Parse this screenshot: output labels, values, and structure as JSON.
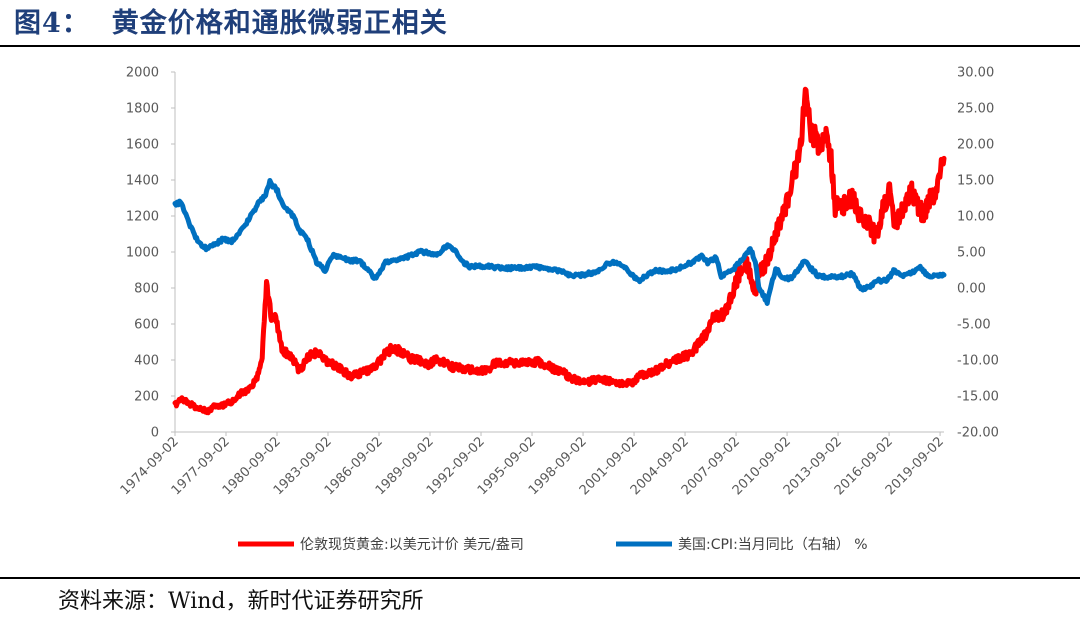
{
  "figure": {
    "label": "图4：",
    "title": "黄金价格和通胀微弱正相关",
    "source": "资料来源：Wind，新时代证券研究所"
  },
  "chart_data": {
    "type": "line",
    "title": "黄金价格和通胀微弱正相关",
    "xlabel": "",
    "ylabel": "",
    "y_left_lim": [
      0,
      2000
    ],
    "y_right_lim": [
      -20,
      30
    ],
    "y_left_ticks": [
      "0",
      "200",
      "400",
      "600",
      "800",
      "1000",
      "1200",
      "1400",
      "1600",
      "1800",
      "2000"
    ],
    "y_right_ticks": [
      "-20.00",
      "-15.00",
      "-10.00",
      "-5.00",
      "0.00",
      "5.00",
      "10.00",
      "15.00",
      "20.00",
      "25.00",
      "30.00"
    ],
    "x_ticks": [
      "1974-09-02",
      "1977-09-02",
      "1980-09-02",
      "1983-09-02",
      "1986-09-02",
      "1989-09-02",
      "1992-09-02",
      "1995-09-02",
      "1998-09-02",
      "2001-09-02",
      "2004-09-02",
      "2007-09-02",
      "2010-09-02",
      "2013-09-02",
      "2016-09-02",
      "2019-09-02"
    ],
    "x_lim": [
      1974.67,
      2019.9
    ],
    "grid": false,
    "legend_position": "bottom",
    "series": [
      {
        "name": "伦敦现货黄金:以美元计价 美元/盎司",
        "axis": "left",
        "color": "#ff0000",
        "x": [
          1974.67,
          1975.0,
          1975.5,
          1976.0,
          1976.7,
          1977.0,
          1977.5,
          1978.0,
          1978.5,
          1979.0,
          1979.5,
          1979.8,
          1980.05,
          1980.3,
          1980.6,
          1981.0,
          1981.5,
          1982.0,
          1982.5,
          1983.0,
          1983.5,
          1984.0,
          1984.5,
          1985.0,
          1985.5,
          1986.0,
          1986.5,
          1987.0,
          1987.5,
          1988.0,
          1988.5,
          1989.0,
          1989.5,
          1990.0,
          1990.5,
          1991.0,
          1992.0,
          1993.0,
          1993.5,
          1994.0,
          1995.0,
          1996.0,
          1997.0,
          1997.5,
          1998.0,
          1999.0,
          1999.7,
          2000.0,
          2001.0,
          2001.5,
          2002.0,
          2003.0,
          2004.0,
          2005.0,
          2006.0,
          2006.4,
          2007.0,
          2008.0,
          2008.3,
          2008.8,
          2009.0,
          2009.5,
          2010.0,
          2010.5,
          2011.0,
          2011.5,
          2011.7,
          2012.0,
          2012.5,
          2013.0,
          2013.3,
          2013.5,
          2014.0,
          2014.5,
          2015.0,
          2015.5,
          2015.9,
          2016.3,
          2016.7,
          2017.0,
          2017.5,
          2018.0,
          2018.7,
          2019.0,
          2019.4,
          2019.7,
          2019.9
        ],
        "values": [
          150,
          180,
          160,
          130,
          115,
          145,
          150,
          170,
          210,
          240,
          300,
          420,
          840,
          650,
          620,
          450,
          420,
          340,
          420,
          440,
          400,
          370,
          345,
          310,
          325,
          340,
          370,
          430,
          470,
          440,
          410,
          400,
          370,
          400,
          390,
          360,
          345,
          340,
          380,
          385,
          385,
          390,
          350,
          330,
          295,
          280,
          300,
          285,
          270,
          270,
          310,
          345,
          400,
          430,
          560,
          650,
          650,
          920,
          940,
          760,
          870,
          950,
          1100,
          1230,
          1400,
          1600,
          1880,
          1700,
          1600,
          1650,
          1480,
          1250,
          1260,
          1300,
          1200,
          1150,
          1080,
          1250,
          1330,
          1150,
          1250,
          1330,
          1200,
          1290,
          1300,
          1500,
          1520
        ]
      },
      {
        "name": "美国:CPI:当月同比（右轴） %",
        "axis": "right",
        "color": "#0070c0",
        "x": [
          1974.67,
          1975.0,
          1975.5,
          1976.0,
          1976.5,
          1977.0,
          1977.5,
          1978.0,
          1978.5,
          1979.0,
          1979.5,
          1980.0,
          1980.25,
          1980.7,
          1981.0,
          1981.5,
          1982.0,
          1982.5,
          1983.0,
          1983.5,
          1984.0,
          1984.5,
          1985.0,
          1985.5,
          1986.0,
          1986.5,
          1987.0,
          1988.0,
          1989.0,
          1989.5,
          1990.0,
          1990.7,
          1991.0,
          1991.7,
          1992.0,
          1993.0,
          1994.0,
          1995.0,
          1996.0,
          1997.0,
          1997.5,
          1998.0,
          1999.0,
          1999.5,
          2000.0,
          2000.5,
          2001.0,
          2001.7,
          2002.0,
          2003.0,
          2003.5,
          2004.0,
          2005.0,
          2005.7,
          2006.0,
          2006.5,
          2006.8,
          2007.0,
          2007.5,
          2008.0,
          2008.5,
          2008.8,
          2009.0,
          2009.5,
          2010.0,
          2010.5,
          2011.0,
          2011.7,
          2012.0,
          2012.5,
          2013.0,
          2014.0,
          2014.5,
          2015.0,
          2015.5,
          2016.0,
          2016.5,
          2017.0,
          2017.5,
          2018.0,
          2018.5,
          2019.0,
          2019.5,
          2019.9
        ],
        "values": [
          11.5,
          12.0,
          9.0,
          6.5,
          5.5,
          6.0,
          6.8,
          6.5,
          7.8,
          9.5,
          11.5,
          13.0,
          14.7,
          13.5,
          11.5,
          10.5,
          8.0,
          6.5,
          3.5,
          2.5,
          4.5,
          4.2,
          3.8,
          3.8,
          2.5,
          1.2,
          3.5,
          4.0,
          5.0,
          5.0,
          4.5,
          6.0,
          5.5,
          3.5,
          3.0,
          3.0,
          2.7,
          2.8,
          2.9,
          2.5,
          2.2,
          1.6,
          2.0,
          2.2,
          3.3,
          3.6,
          3.2,
          1.5,
          1.1,
          2.5,
          2.2,
          2.5,
          3.5,
          4.5,
          3.5,
          4.3,
          1.5,
          2.0,
          2.5,
          4.0,
          5.5,
          3.7,
          0.1,
          -2.0,
          2.7,
          1.2,
          1.5,
          3.8,
          2.9,
          1.7,
          1.5,
          1.6,
          2.0,
          -0.1,
          0.1,
          1.0,
          1.0,
          2.5,
          1.6,
          2.1,
          2.8,
          1.6,
          1.8,
          1.8
        ]
      }
    ]
  }
}
